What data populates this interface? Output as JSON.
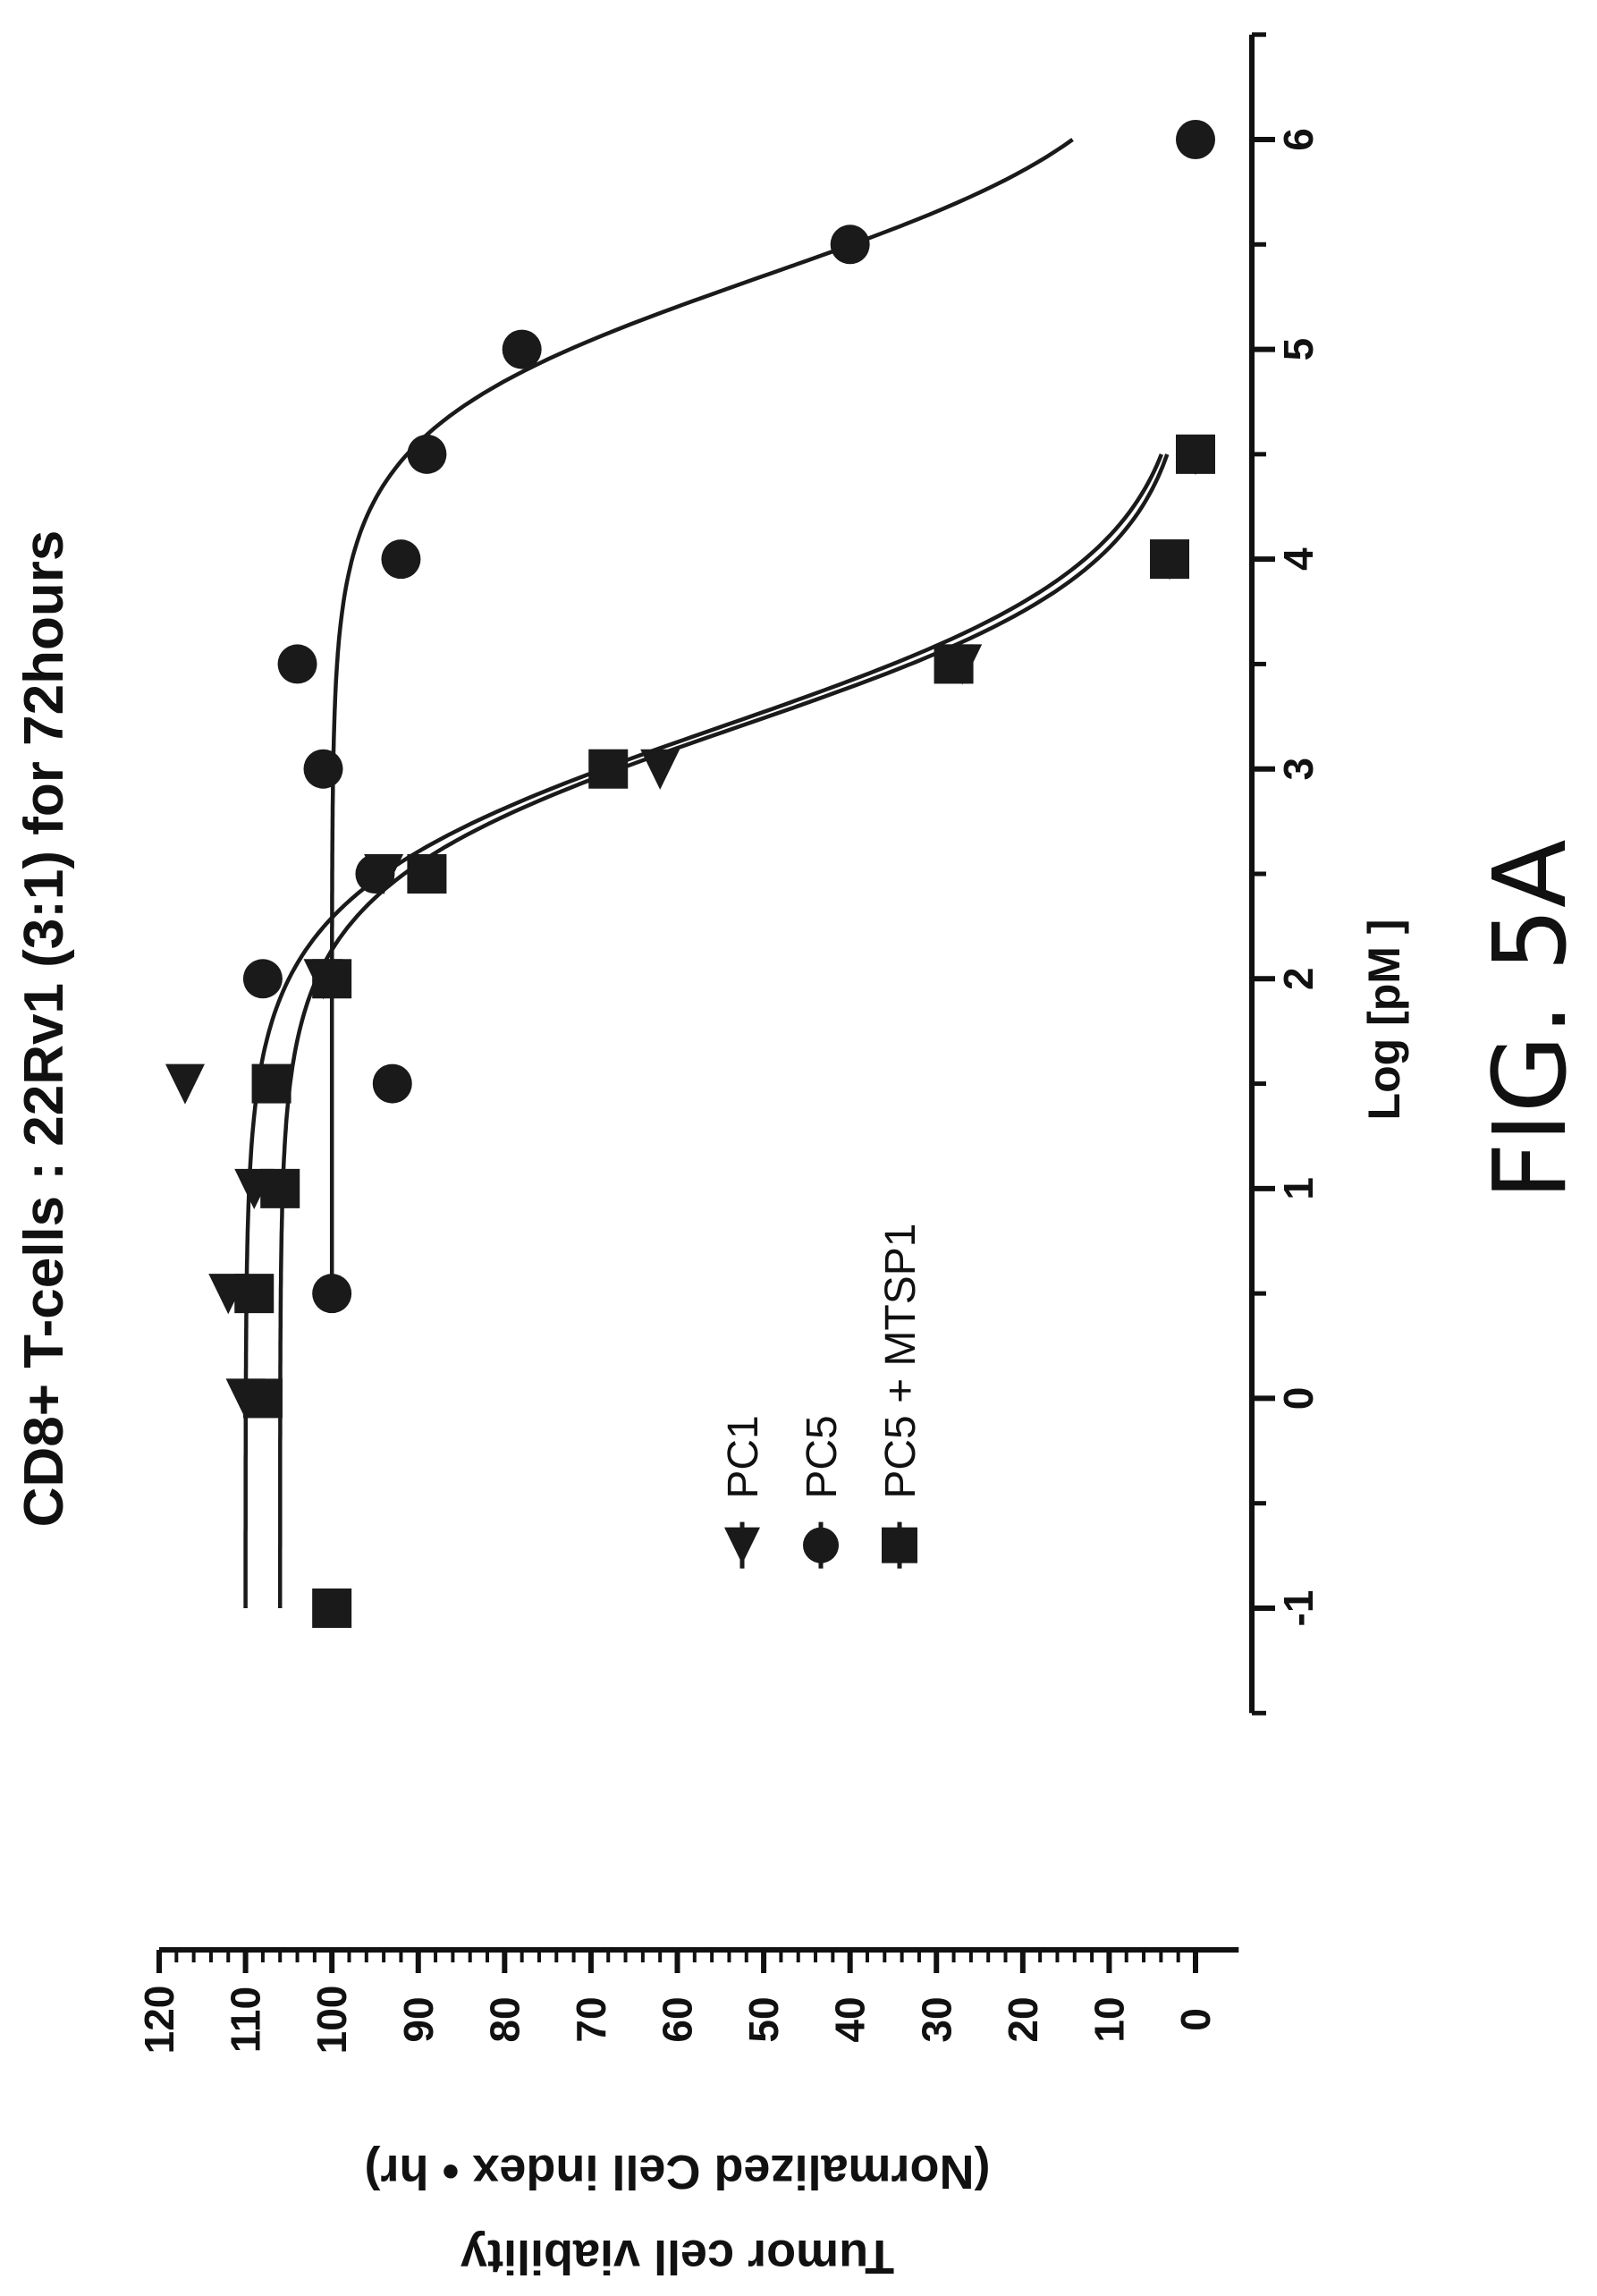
{
  "chart_data": {
    "type": "scatter",
    "title": "CD8+ T-cells : 22Rv1 (3:1) for 72hours",
    "xlabel": "Log [pM ]",
    "ylabel": "Tumor cell viability (Normalized Cell index • hr)",
    "figure_label": "FIG. 5A",
    "xlim": [
      -1.5,
      6.5
    ],
    "ylim": [
      -5,
      120
    ],
    "x_ticks": [
      "-1",
      "0",
      "1",
      "2",
      "3",
      "4",
      "5",
      "6"
    ],
    "y_ticks": [
      "0",
      "10",
      "20",
      "30",
      "40",
      "50",
      "60",
      "70",
      "80",
      "90",
      "100",
      "110",
      "120"
    ],
    "grid": false,
    "legend_position": "bottom-left",
    "orientation": "rotated 90 degrees counter-clockwise",
    "series": [
      {
        "name": "PC1",
        "marker": "triangle-down",
        "points": [
          [
            0,
            110
          ],
          [
            0.5,
            112
          ],
          [
            1,
            109
          ],
          [
            1.5,
            117
          ],
          [
            2,
            101
          ],
          [
            2.5,
            94
          ],
          [
            3,
            62
          ],
          [
            3.5,
            27
          ],
          [
            4,
            3
          ],
          [
            4.5,
            0
          ]
        ],
        "fit": {
          "top": 110,
          "bottom": 0,
          "log_ec50": 3.2,
          "hill": 1.1
        }
      },
      {
        "name": "PC5",
        "marker": "circle",
        "points": [
          [
            0.5,
            100
          ],
          [
            1.5,
            93
          ],
          [
            2,
            108
          ],
          [
            2.5,
            95
          ],
          [
            3,
            101
          ],
          [
            3.5,
            104
          ],
          [
            4,
            92
          ],
          [
            4.5,
            89
          ],
          [
            5,
            78
          ],
          [
            5.5,
            40
          ],
          [
            6,
            0
          ]
        ],
        "fit": {
          "top": 100,
          "bottom": 0,
          "log_ec50": 5.35,
          "hill": 1.2
        }
      },
      {
        "name": "PC5 + MTSP1",
        "marker": "square",
        "points": [
          [
            -1,
            100
          ],
          [
            0,
            108
          ],
          [
            0.5,
            109
          ],
          [
            1,
            106
          ],
          [
            1.5,
            107
          ],
          [
            2,
            100
          ],
          [
            2.5,
            89
          ],
          [
            3,
            68
          ],
          [
            3.5,
            28
          ],
          [
            4,
            3
          ],
          [
            4.5,
            0
          ]
        ],
        "fit": {
          "top": 106,
          "bottom": 0,
          "log_ec50": 3.2,
          "hill": 1.15
        }
      }
    ]
  }
}
